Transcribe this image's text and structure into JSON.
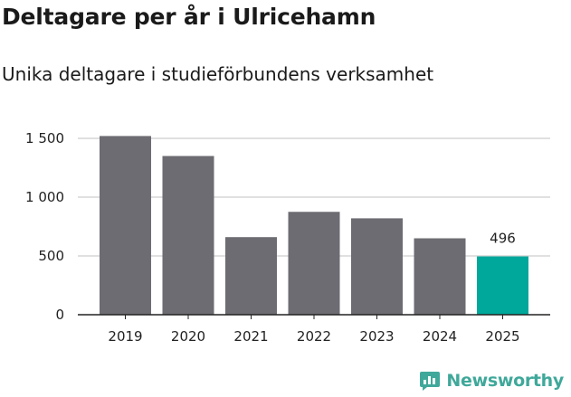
{
  "chart_data": {
    "type": "bar",
    "title": "Deltagare per år i Ulricehamn",
    "subtitle": "Unika deltagare i studieförbundens verksamhet",
    "xlabel": "",
    "ylabel": "",
    "categories": [
      "2019",
      "2020",
      "2021",
      "2022",
      "2023",
      "2024",
      "2025"
    ],
    "values": [
      1520,
      1350,
      660,
      875,
      820,
      650,
      496
    ],
    "ylim": [
      0,
      1600
    ],
    "yticks": [
      {
        "value": 0,
        "label": "0"
      },
      {
        "value": 500,
        "label": "500"
      },
      {
        "value": 1000,
        "label": "1 000"
      },
      {
        "value": 1500,
        "label": "1 500"
      }
    ],
    "highlight_index": 6,
    "annotations": [
      {
        "index": 6,
        "text": "496"
      }
    ],
    "colors": {
      "bar": "#6d6c72",
      "highlight": "#00a79b",
      "grid": "#d6d6d6",
      "axis": "#222222"
    }
  },
  "brand": {
    "name": "Newsworthy",
    "icon": "newsworthy-logo-icon",
    "color": "#3fa89a"
  }
}
